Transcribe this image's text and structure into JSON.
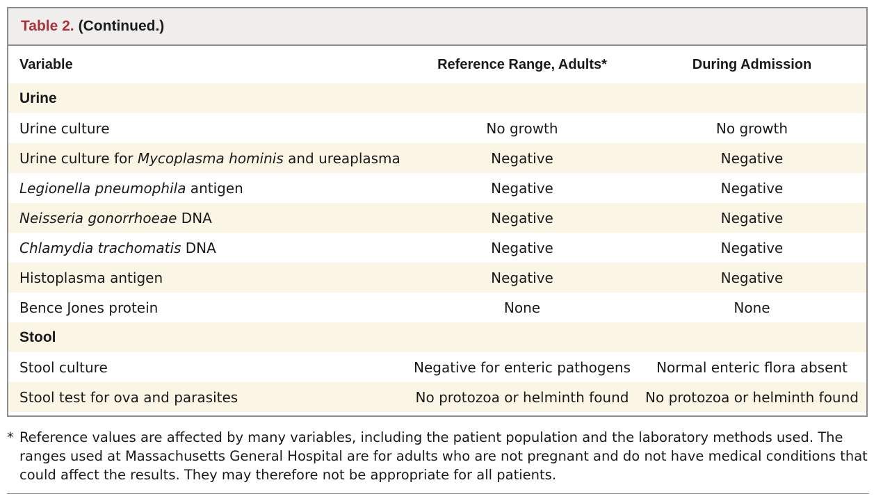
{
  "caption": {
    "label": "Table 2.",
    "continued": "(Continued.)"
  },
  "columns": [
    "Variable",
    "Reference Range, Adults*",
    "During Admission"
  ],
  "rows": [
    {
      "type": "section",
      "variable": "Urine"
    },
    {
      "type": "data",
      "pre": "Urine culture",
      "italic": "",
      "post": "",
      "reference": "No growth",
      "admission": "No growth"
    },
    {
      "type": "data",
      "pre": "Urine culture for ",
      "italic": "Mycoplasma hominis",
      "post": " and ureaplasma",
      "reference": "Negative",
      "admission": "Negative"
    },
    {
      "type": "data",
      "pre": "",
      "italic": "Legionella pneumophila",
      "post": " antigen",
      "reference": "Negative",
      "admission": "Negative"
    },
    {
      "type": "data",
      "pre": "",
      "italic": "Neisseria gonorrhoeae",
      "post": " DNA",
      "reference": "Negative",
      "admission": "Negative"
    },
    {
      "type": "data",
      "pre": "",
      "italic": "Chlamydia trachomatis",
      "post": " DNA",
      "reference": "Negative",
      "admission": "Negative"
    },
    {
      "type": "data",
      "pre": "Histoplasma antigen",
      "italic": "",
      "post": "",
      "reference": "Negative",
      "admission": "Negative"
    },
    {
      "type": "data",
      "pre": "Bence Jones protein",
      "italic": "",
      "post": "",
      "reference": "None",
      "admission": "None"
    },
    {
      "type": "section",
      "variable": "Stool"
    },
    {
      "type": "data",
      "pre": "Stool culture",
      "italic": "",
      "post": "",
      "reference": "Negative for enteric pathogens",
      "admission": "Normal enteric flora absent"
    },
    {
      "type": "data",
      "pre": "Stool test for ova and parasites",
      "italic": "",
      "post": "",
      "reference": "No protozoa or helminth found",
      "admission": "No protozoa or helminth found"
    }
  ],
  "footnote": {
    "mark": "*",
    "text": "Reference values are affected by many variables, including the patient population and the laboratory methods used. The ranges used at Massachusetts General Hospital are for adults who are not pregnant and do not have medical conditions that could affect the results. They may therefore not be appropriate for all patients."
  }
}
